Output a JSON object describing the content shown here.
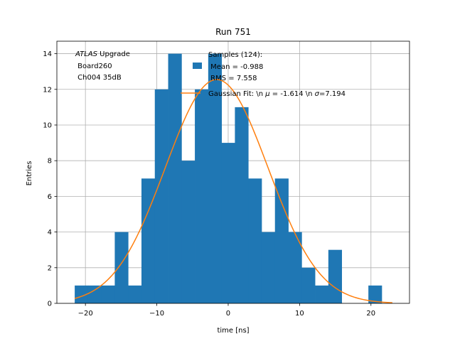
{
  "chart_data": {
    "type": "bar",
    "title": "Run 751",
    "xlabel": "time [ns]",
    "ylabel": "Entries",
    "xlim": [
      -24,
      25.4
    ],
    "ylim": [
      0,
      14.7
    ],
    "grid": true,
    "xticks": [
      -20,
      -10,
      0,
      10,
      20
    ],
    "xtick_labels": [
      "−20",
      "−10",
      "0",
      "10",
      "20"
    ],
    "yticks": [
      0,
      2,
      4,
      6,
      8,
      10,
      12,
      14
    ],
    "ytick_labels": [
      "0",
      "2",
      "4",
      "6",
      "8",
      "10",
      "12",
      "14"
    ],
    "bar_color": "#1f77b4",
    "fit_color": "#ff7f0e",
    "histogram": {
      "bin_edges": [
        -21.5,
        -19.63,
        -17.76,
        -15.89,
        -14.02,
        -12.15,
        -10.28,
        -8.41,
        -6.54,
        -4.67,
        -2.8,
        -0.93,
        0.94,
        2.81,
        4.68,
        6.55,
        8.42,
        10.29,
        12.16,
        14.03,
        15.9,
        17.77,
        19.64,
        21.51,
        23.38
      ],
      "counts": [
        1,
        1,
        1,
        4,
        1,
        7,
        12,
        14,
        8,
        12,
        14,
        9,
        11,
        7,
        4,
        7,
        4,
        2,
        1,
        3,
        0,
        0,
        1,
        0
      ]
    },
    "gaussian_fit": {
      "mu": -1.614,
      "sigma": 7.194,
      "amplitude": 12.55,
      "x_range": [
        -21.5,
        23.0
      ]
    },
    "legend": {
      "placement": "top-right",
      "samples_line1": "Samples (124):",
      "samples_line2": " Mean = -0.988",
      "samples_line3": " RMS = 7.558",
      "fit_prefix": "Gaussian Fit: \\n ",
      "fit_mu_symbol": "μ",
      "fit_mid": " = -1.614 \\n ",
      "fit_sigma_symbol": "σ",
      "fit_suffix": "=7.194"
    },
    "annotation": {
      "atlas_italic": "ATLAS",
      "atlas_rest": " Upgrade",
      "line2": " Board260",
      "line3": " Ch004 35dB"
    }
  }
}
